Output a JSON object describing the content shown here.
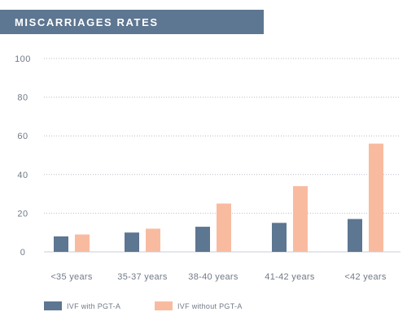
{
  "chart_data": {
    "type": "bar",
    "title": "MISCARRIAGES RATES",
    "categories": [
      "<35 years",
      "35-37 years",
      "38-40 years",
      "41-42 years",
      "<42 years"
    ],
    "series": [
      {
        "name": "IVF with PGT-A",
        "color": "#5d7691",
        "values": [
          8,
          10,
          13,
          15,
          17
        ]
      },
      {
        "name": "IVF without PGT-A",
        "color": "#f9bba0",
        "values": [
          9,
          12,
          25,
          34,
          56
        ]
      }
    ],
    "ylim": [
      0,
      100
    ],
    "yticks": [
      0,
      20,
      40,
      60,
      80,
      100
    ],
    "grid": true,
    "legend": "bottom-left"
  }
}
